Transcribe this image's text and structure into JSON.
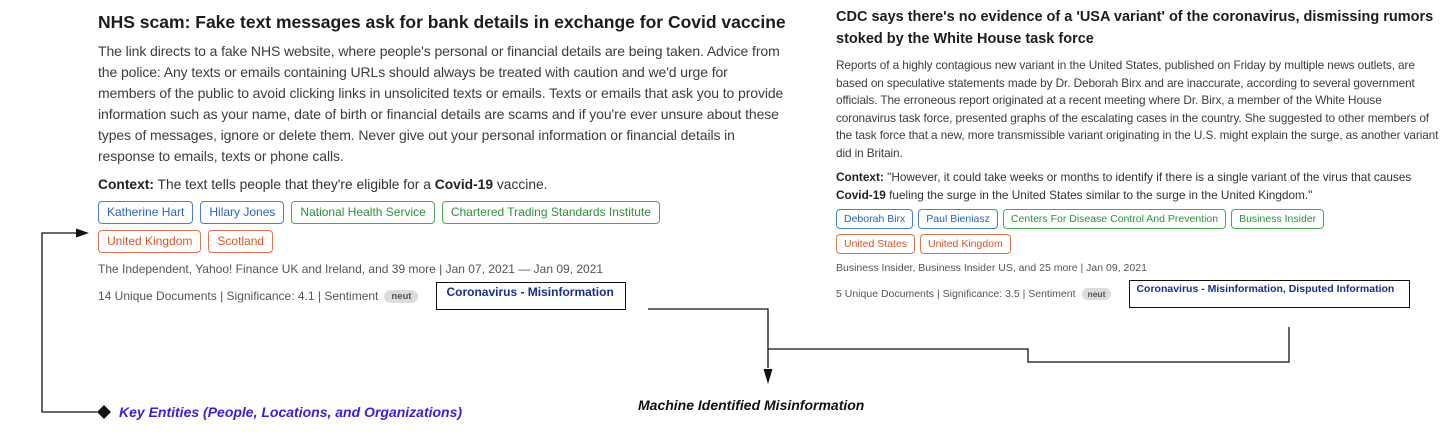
{
  "card1": {
    "title": "NHS scam: Fake text messages ask for bank details in exchange for Covid vaccine",
    "summary": "The link directs to a fake NHS website, where people's personal or financial details are being taken. Advice from the police: Any texts or emails containing URLs should always be treated with caution and we'd urge for members of the public to avoid clicking links in unsolicited texts or emails. Texts or emails that ask you to provide information such as your name, date of birth or financial details are scams and if you're ever unsure about these types of messages, ignore or delete them. Never give out your personal information or financial details in response to emails, texts or phone calls.",
    "context_label": "Context:",
    "context_before": "The text tells people that they're eligible for a",
    "context_bold": "Covid-19",
    "context_after": "vaccine.",
    "tags_row1": [
      {
        "label": "Katherine Hart",
        "type": "person"
      },
      {
        "label": "Hilary Jones",
        "type": "person"
      },
      {
        "label": "National Health Service",
        "type": "organization"
      },
      {
        "label": "Chartered Trading Standards Institute",
        "type": "organization"
      }
    ],
    "tags_row2": [
      {
        "label": "United Kingdom",
        "type": "location"
      },
      {
        "label": "Scotland",
        "type": "location"
      }
    ],
    "sources": "The Independent, Yahoo! Finance UK and Ireland, and 39 more  |  Jan 07, 2021 — Jan 09, 2021",
    "meta": "14 Unique Documents | Significance:  4.1 |  Sentiment",
    "sentiment": "neut",
    "misinfo": "Coronavirus - Misinformation"
  },
  "card2": {
    "title": "CDC says there's no evidence of a 'USA variant' of the coronavirus, dismissing rumors stoked by the White House task force",
    "summary": "Reports of a highly contagious new variant in the United States, published on Friday by multiple news outlets, are based on speculative statements made by Dr. Deborah Birx and are inaccurate, according to several government officials. The erroneous report originated at a recent meeting where Dr. Birx, a member of the White House coronavirus task force, presented graphs of the escalating cases in the country. She suggested to other members of the task force that a new, more transmissible variant originating in the U.S. might explain the surge, as another variant did in Britain.",
    "context_label": "Context:",
    "context_before": "\"However, it could take weeks or months to identify if there is a single variant of the virus that causes",
    "context_bold": "Covid-19",
    "context_after": "fueling the surge in the United States similar to the surge in the United Kingdom.\"",
    "tags_row1": [
      {
        "label": "Deborah Birx",
        "type": "person"
      },
      {
        "label": "Paul Bieniasz",
        "type": "person"
      },
      {
        "label": "Centers For Disease Control And Prevention",
        "type": "organization"
      },
      {
        "label": "Business Insider",
        "type": "organization"
      }
    ],
    "tags_row2": [
      {
        "label": "United States",
        "type": "location"
      },
      {
        "label": "United Kingdom",
        "type": "location"
      }
    ],
    "sources": "Business Insider, Business Insider US, and 25 more  |  Jan 09, 2021",
    "meta": "5 Unique Documents | Significance:  3.5 |  Sentiment",
    "sentiment": "neut",
    "misinfo": "Coronavirus - Misinformation, Disputed Information"
  },
  "annotations": {
    "key_entities": "Key Entities (People, Locations, and Organizations)",
    "machine_misinfo": "Machine Identified Misinformation"
  },
  "colors": {
    "person": "#2a64b8",
    "organization": "#2f8f3a",
    "location": "#d8542a",
    "key_entities_label": "#3a1fd8",
    "misinfo_text": "#1a2e8a"
  }
}
